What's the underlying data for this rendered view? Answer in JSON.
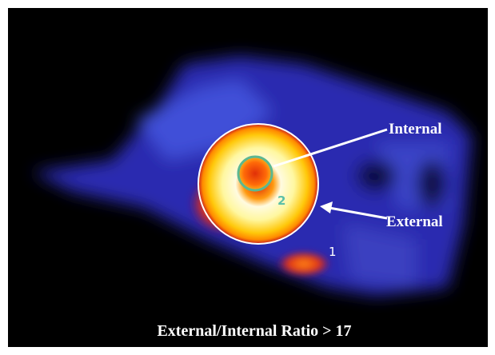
{
  "labels": {
    "internal": "Internal",
    "external": "External",
    "region_1": "1",
    "region_2": "2"
  },
  "caption": "External/Internal Ratio > 17"
}
